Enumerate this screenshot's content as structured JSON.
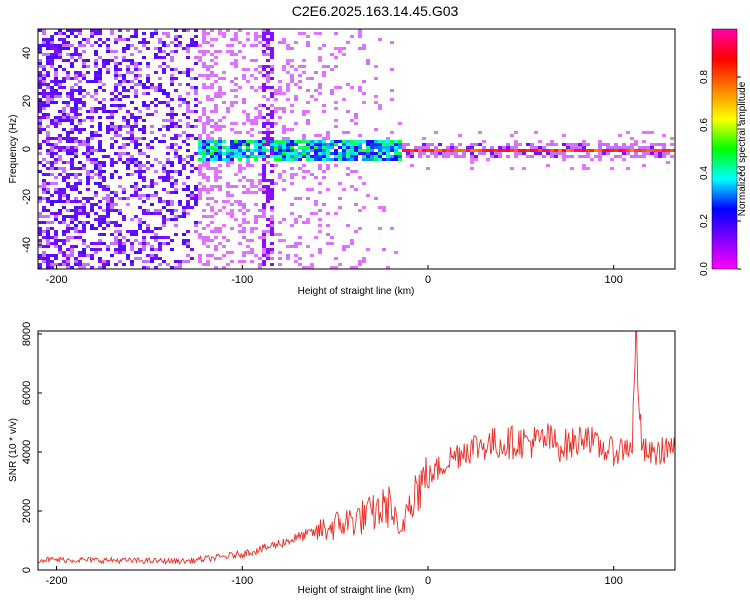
{
  "figure": {
    "title": "C2E6.2025.163.14.45.G03"
  },
  "chart_data": [
    {
      "type": "heatmap",
      "xlabel": "Height of straight line (km)",
      "ylabel": "Frequency (Hz)",
      "xlim": [
        -210,
        133
      ],
      "ylim": [
        -50,
        50
      ],
      "xticks": [
        -200,
        -100,
        0,
        100
      ],
      "yticks": [
        -40,
        -20,
        0,
        20,
        40
      ],
      "colorbar": {
        "label": "Normalized spectral amplitude",
        "range": [
          0.0,
          1.0
        ],
        "ticks": [
          "0.0",
          "0.2",
          "0.4",
          "0.6",
          "0.8"
        ],
        "colormap": [
          "#ff00ff",
          "#8000ff",
          "#0000ff",
          "#00ffff",
          "#00ff00",
          "#ffff00",
          "#ff8000",
          "#ff0000",
          "#ff00aa"
        ]
      },
      "structure": [
        {
          "x_range": [
            -210,
            -125
          ],
          "freq_spread": [
            -50,
            50
          ],
          "amplitude": 0.15
        },
        {
          "x_range": [
            -125,
            -15
          ],
          "freq_spread": [
            -8,
            8
          ],
          "amplitude": 0.4
        },
        {
          "x_range": [
            -15,
            133
          ],
          "freq_spread": [
            -1,
            1
          ],
          "amplitude": 0.85
        }
      ]
    },
    {
      "type": "line",
      "xlabel": "Height of straight line (km)",
      "ylabel": "SNR (10 * v/v)",
      "xlim": [
        -210,
        133
      ],
      "ylim": [
        0,
        8100
      ],
      "xticks": [
        -200,
        -100,
        0,
        100
      ],
      "yticks": [
        0,
        2000,
        4000,
        6000,
        8000
      ],
      "color": "#e8302a",
      "series": [
        {
          "x": [
            -210,
            -190,
            -170,
            -150,
            -130,
            -110,
            -100,
            -90,
            -80,
            -70,
            -60,
            -50,
            -40,
            -30,
            -20,
            -15,
            -10,
            0,
            10,
            20,
            30,
            40,
            50,
            60,
            65,
            70,
            80,
            85,
            90,
            95,
            100,
            105,
            110,
            112,
            115,
            120,
            125,
            130,
            133
          ],
          "values": [
            350,
            340,
            330,
            310,
            300,
            450,
            550,
            700,
            900,
            1100,
            1300,
            1500,
            1700,
            1900,
            2200,
            1000,
            2600,
            3100,
            3700,
            4100,
            4250,
            4300,
            4350,
            4350,
            4450,
            4200,
            4300,
            4700,
            4200,
            4100,
            4000,
            4100,
            4300,
            8000,
            4100,
            3900,
            4000,
            4200,
            4000
          ]
        }
      ]
    }
  ]
}
